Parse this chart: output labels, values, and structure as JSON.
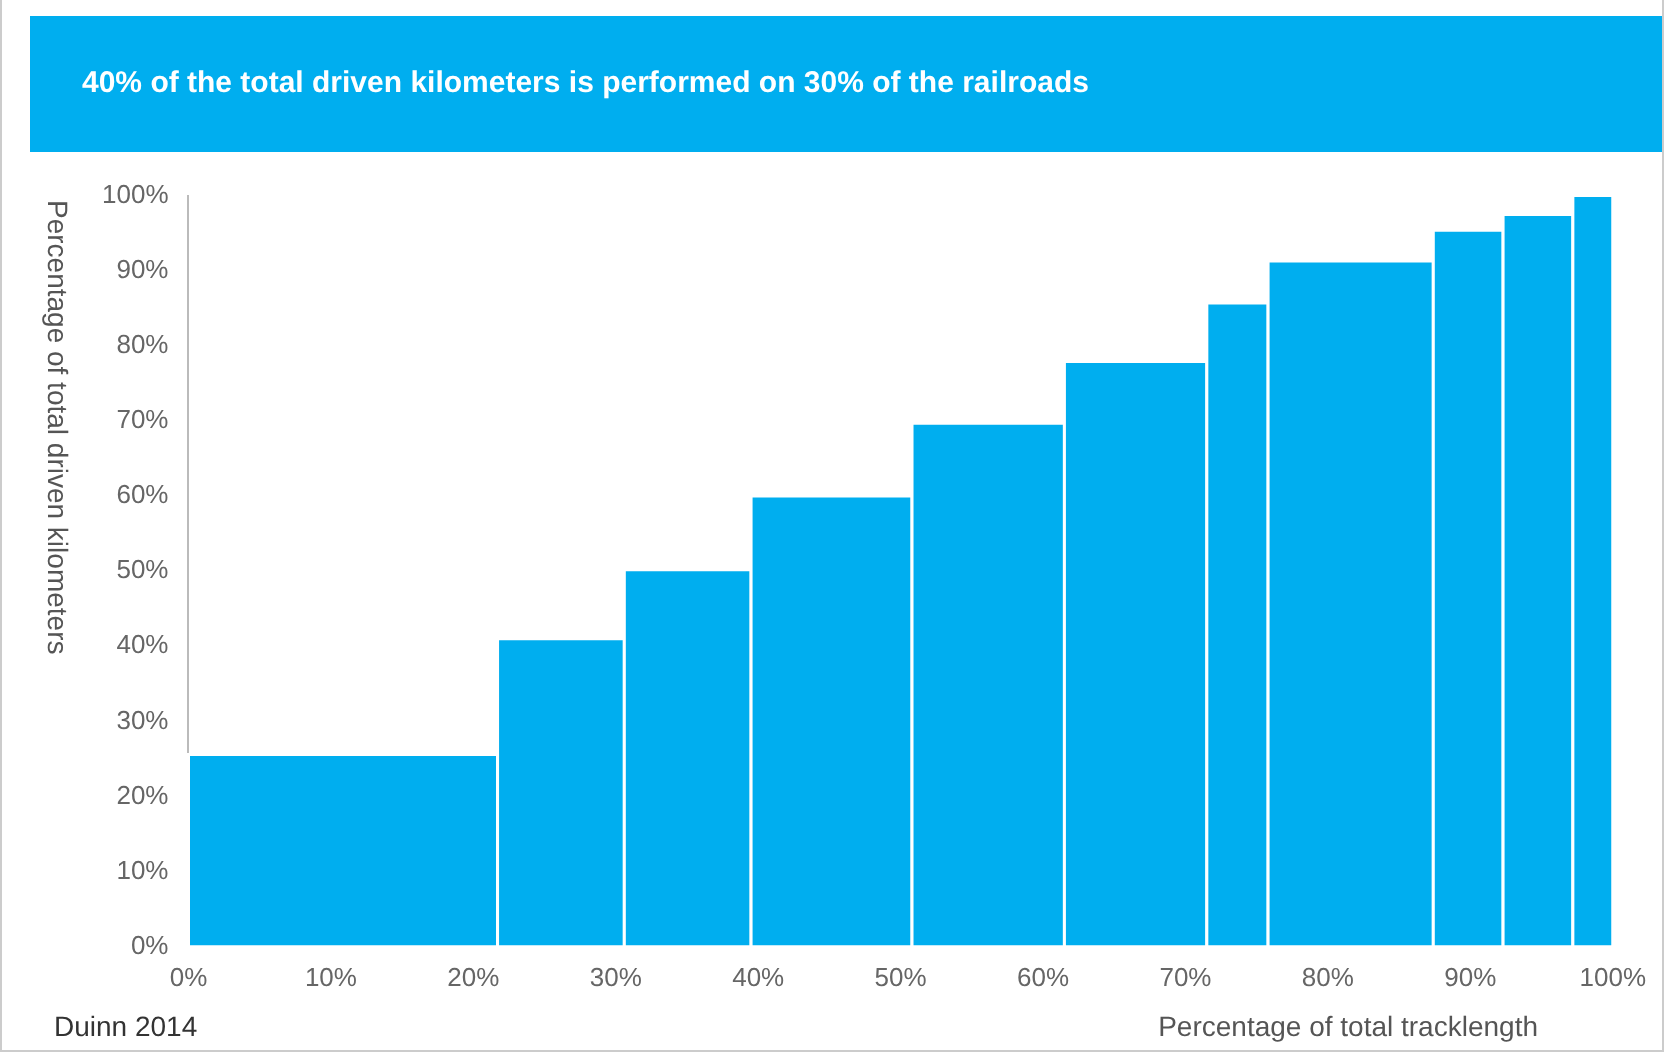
{
  "chart_data": {
    "type": "histogram",
    "title": "40% of the total driven kilometers is performed on 30% of the railroads",
    "xlabel": "Percentage of total tracklength",
    "ylabel": "Percentage of total driven kilometers",
    "annotations": [
      "Duinn 2014"
    ],
    "bins": [
      0,
      21.7,
      30.6,
      39.5,
      50.8,
      61.5,
      71.5,
      75.8,
      87.4,
      92.3,
      97.2,
      100
    ],
    "values": [
      25.6,
      41.0,
      50.2,
      60.0,
      69.7,
      77.9,
      85.7,
      91.3,
      95.4,
      97.5,
      100
    ],
    "color": "#00aeef",
    "xlim": [
      0,
      100
    ],
    "xticks": [
      {
        "value": 0,
        "label": "0%"
      },
      {
        "value": 10,
        "label": "10%"
      },
      {
        "value": 20,
        "label": "20%"
      },
      {
        "value": 30,
        "label": "30%"
      },
      {
        "value": 40,
        "label": "40%"
      },
      {
        "value": 50,
        "label": "50%"
      },
      {
        "value": 60,
        "label": "60%"
      },
      {
        "value": 70,
        "label": "70%"
      },
      {
        "value": 80,
        "label": "80%"
      },
      {
        "value": 90,
        "label": "90%"
      },
      {
        "value": 100,
        "label": "100%"
      }
    ],
    "ylim": [
      0,
      100
    ],
    "yticks": [
      {
        "value": 0,
        "label": "0%"
      },
      {
        "value": 10,
        "label": "10%"
      },
      {
        "value": 20,
        "label": "20%"
      },
      {
        "value": 30,
        "label": "30%"
      },
      {
        "value": 40,
        "label": "40%"
      },
      {
        "value": 50,
        "label": "50%"
      },
      {
        "value": 60,
        "label": "60%"
      },
      {
        "value": 70,
        "label": "70%"
      },
      {
        "value": 80,
        "label": "80%"
      },
      {
        "value": 90,
        "label": "90%"
      },
      {
        "value": 100,
        "label": "100%"
      }
    ],
    "grid": false,
    "legend": false
  }
}
